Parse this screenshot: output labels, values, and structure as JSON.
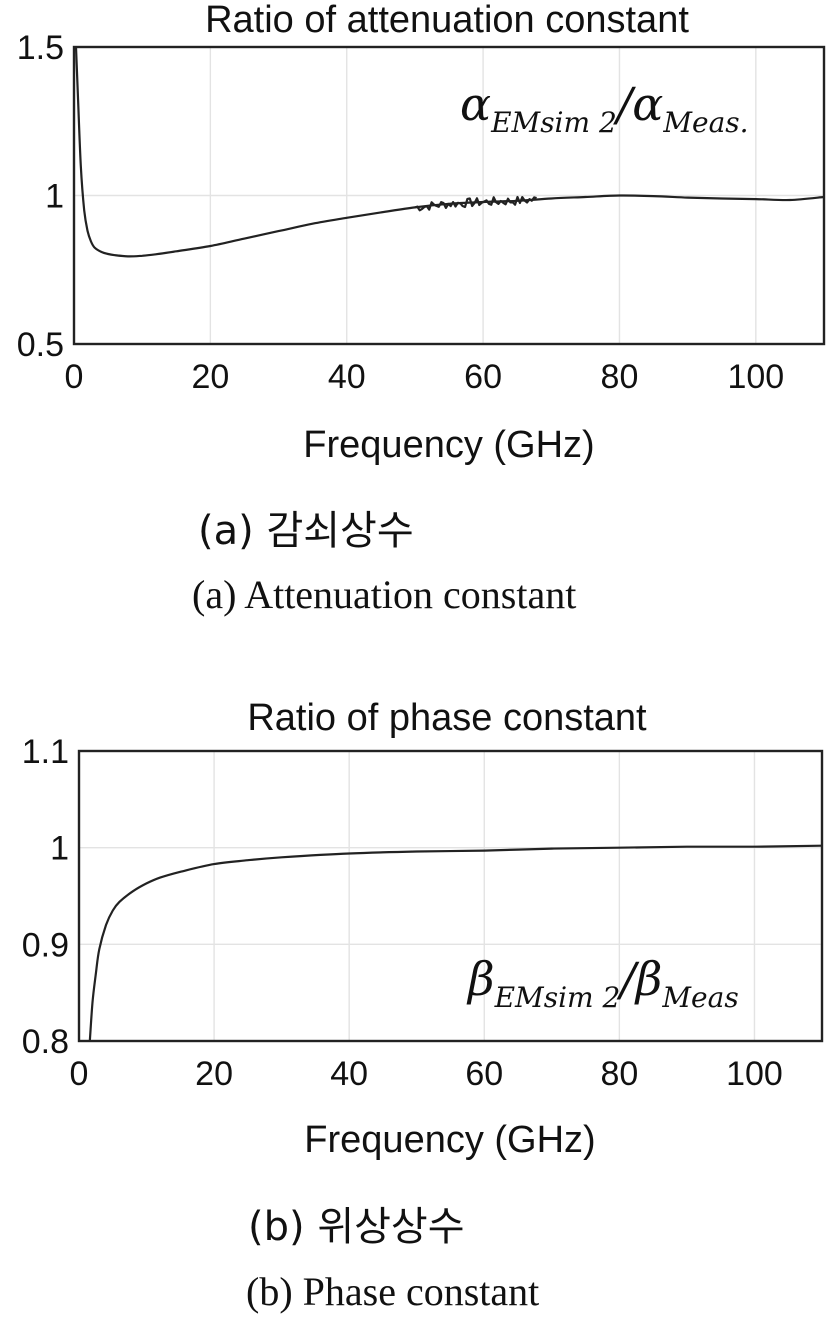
{
  "chart_data": [
    {
      "type": "line",
      "title": "Ratio of attenuation constant",
      "xlabel": "Frequency (GHz)",
      "ylabel": "",
      "xlim": [
        0,
        110
      ],
      "ylim": [
        0.5,
        1.5
      ],
      "grid": true,
      "xticks": [
        "0",
        "20",
        "40",
        "60",
        "80",
        "100"
      ],
      "yticks": [
        "0.5",
        "1",
        "1.5"
      ],
      "annotation": {
        "main_a": "α",
        "sub_a": "EMsim 2",
        "slash": "/",
        "main_b": "α",
        "sub_b": "Meas."
      },
      "noise_band": [
        50,
        68
      ],
      "series": [
        {
          "x": [
            0.3,
            0.6,
            1,
            1.5,
            2,
            2.5,
            3,
            4,
            5,
            6,
            8,
            10,
            12,
            15,
            20,
            25,
            30,
            35,
            40,
            45,
            50,
            55,
            60,
            65,
            70,
            75,
            80,
            85,
            90,
            95,
            100,
            105,
            110
          ],
          "values": [
            1.5,
            1.32,
            1.1,
            0.95,
            0.88,
            0.845,
            0.825,
            0.81,
            0.803,
            0.799,
            0.795,
            0.797,
            0.802,
            0.812,
            0.83,
            0.855,
            0.88,
            0.905,
            0.925,
            0.943,
            0.96,
            0.972,
            0.978,
            0.982,
            0.99,
            0.995,
            1.0,
            0.998,
            0.993,
            0.99,
            0.988,
            0.985,
            0.995
          ]
        }
      ]
    },
    {
      "type": "line",
      "title": "Ratio of phase constant",
      "xlabel": "Frequency (GHz)",
      "ylabel": "",
      "xlim": [
        0,
        110
      ],
      "ylim": [
        0.8,
        1.1
      ],
      "grid": true,
      "xticks": [
        "0",
        "20",
        "40",
        "60",
        "80",
        "100"
      ],
      "yticks": [
        "0.8",
        "0.9",
        "1",
        "1.1"
      ],
      "annotation": {
        "main_a": "β",
        "sub_a": "EMsim 2",
        "slash": "/",
        "main_b": "β",
        "sub_b": "Meas"
      },
      "series": [
        {
          "x": [
            1.6,
            2,
            2.5,
            3,
            4,
            5,
            6,
            8,
            10,
            12,
            15,
            20,
            25,
            30,
            40,
            50,
            60,
            70,
            80,
            90,
            100,
            110
          ],
          "values": [
            0.8,
            0.84,
            0.87,
            0.895,
            0.92,
            0.935,
            0.944,
            0.955,
            0.963,
            0.969,
            0.975,
            0.983,
            0.987,
            0.99,
            0.994,
            0.996,
            0.997,
            0.999,
            1.0,
            1.001,
            1.001,
            1.002
          ]
        }
      ]
    }
  ],
  "captions": {
    "a_korean": "(a)  감쇠상수",
    "a_english": "(a)  Attenuation  constant",
    "b_korean": "(b)  위상상수",
    "b_english": "(b)  Phase  constant"
  }
}
